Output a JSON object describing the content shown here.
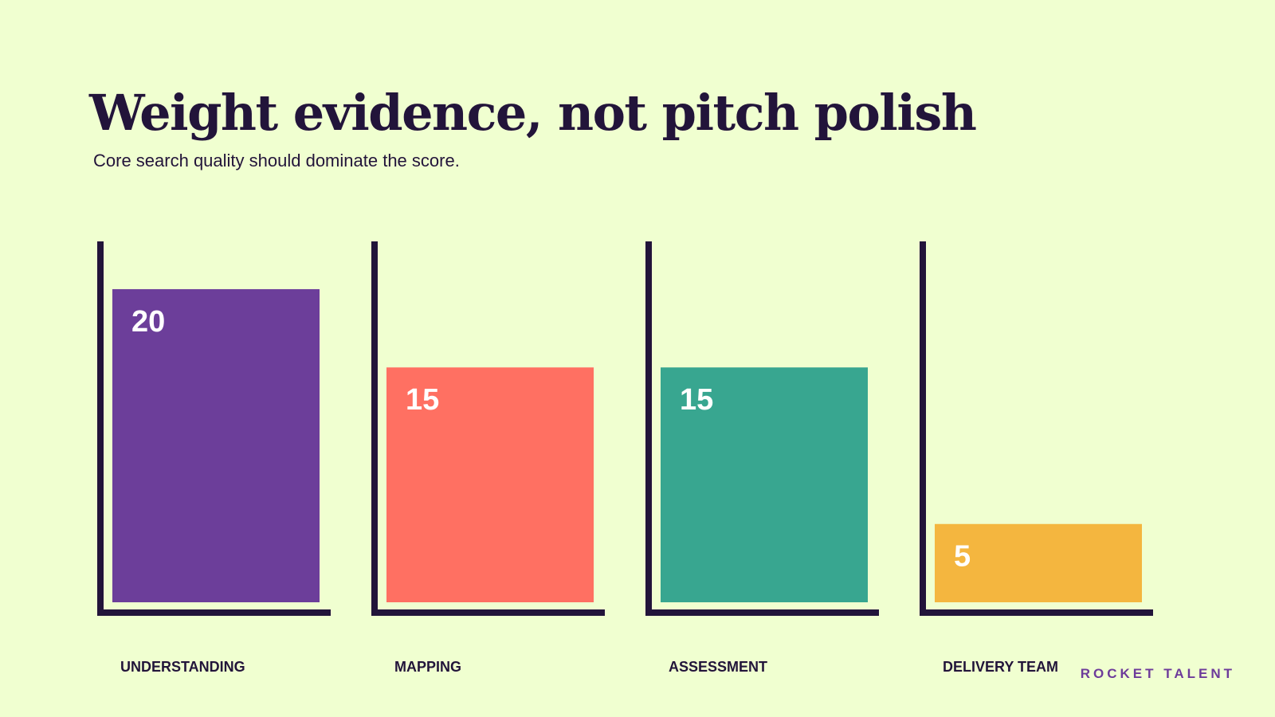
{
  "title": "Weight evidence, not pitch polish",
  "subtitle": "Core search quality should dominate the score.",
  "brand": "ROCKET TALENT",
  "colors": {
    "background": "#f0ffd0",
    "ink": "#22143a",
    "label_text": "#ffffff"
  },
  "chart_data": {
    "type": "bar",
    "categories": [
      "UNDERSTANDING",
      "MAPPING",
      "ASSESSMENT",
      "DELIVERY TEAM"
    ],
    "values": [
      20,
      15,
      15,
      5
    ],
    "display_labels": [
      "20",
      "15",
      "15",
      "5"
    ],
    "bar_colors": [
      "#6c3e9a",
      "#ff7062",
      "#38a690",
      "#f4b63f"
    ],
    "ylim": [
      0,
      23
    ],
    "grid": false,
    "legend": "none"
  }
}
